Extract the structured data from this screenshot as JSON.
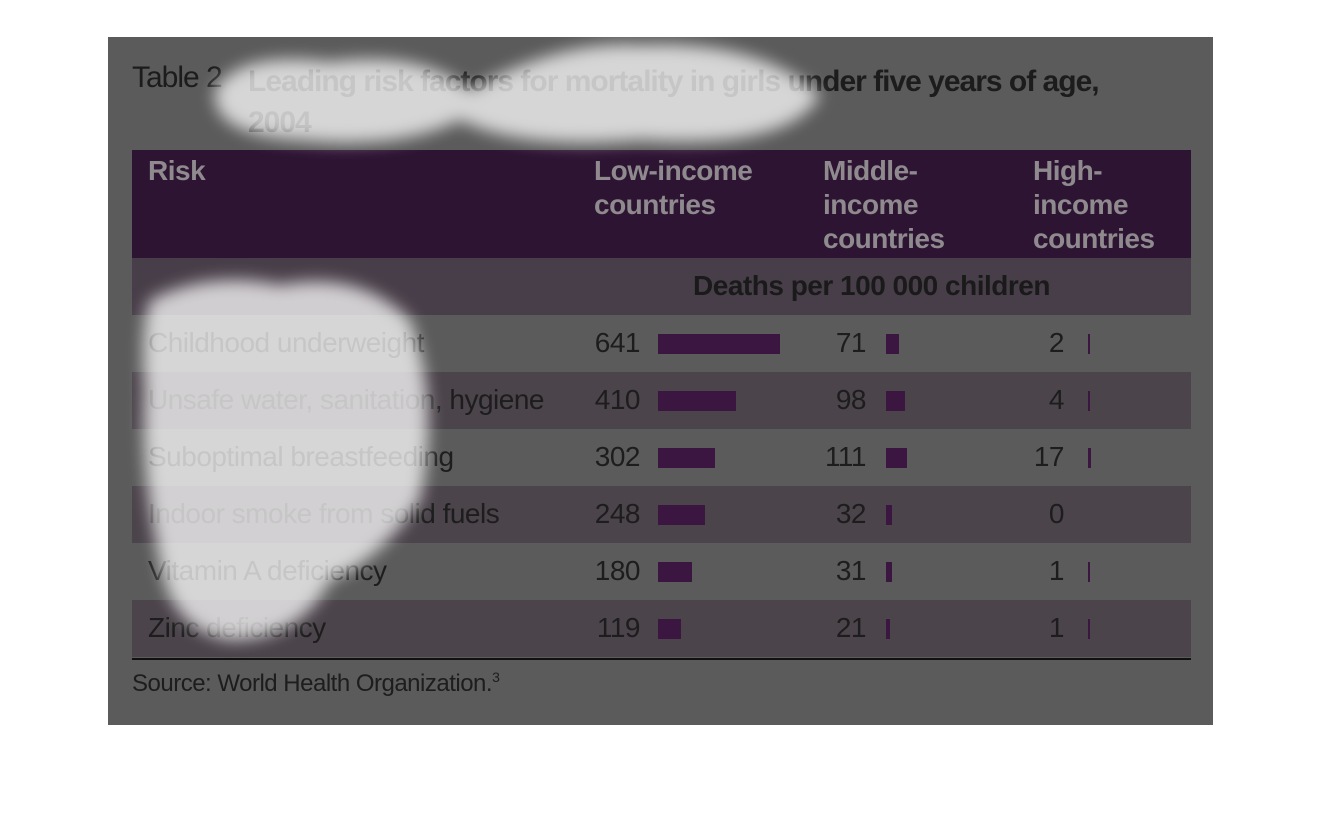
{
  "table": {
    "label": "Table 2",
    "title": "Leading risk factors for mortality in girls under five years of age, 2004",
    "columns": [
      "Risk",
      "Low-income countries",
      "Middle-income countries",
      "High-income countries"
    ],
    "unit": "Deaths per 100 000 children",
    "rows": [
      [
        "Childhood underweight",
        641,
        71,
        2
      ],
      [
        "Unsafe water, sanitation, hygiene",
        410,
        98,
        4
      ],
      [
        "Suboptimal breastfeeding",
        302,
        111,
        17
      ],
      [
        "Indoor smoke from solid fuels",
        248,
        32,
        0
      ],
      [
        "Vitamin A deficiency",
        180,
        31,
        1
      ],
      [
        "Zinc deficiency",
        119,
        21,
        1
      ]
    ],
    "source": "Source: World Health Organization.",
    "source_ref": "3"
  }
}
